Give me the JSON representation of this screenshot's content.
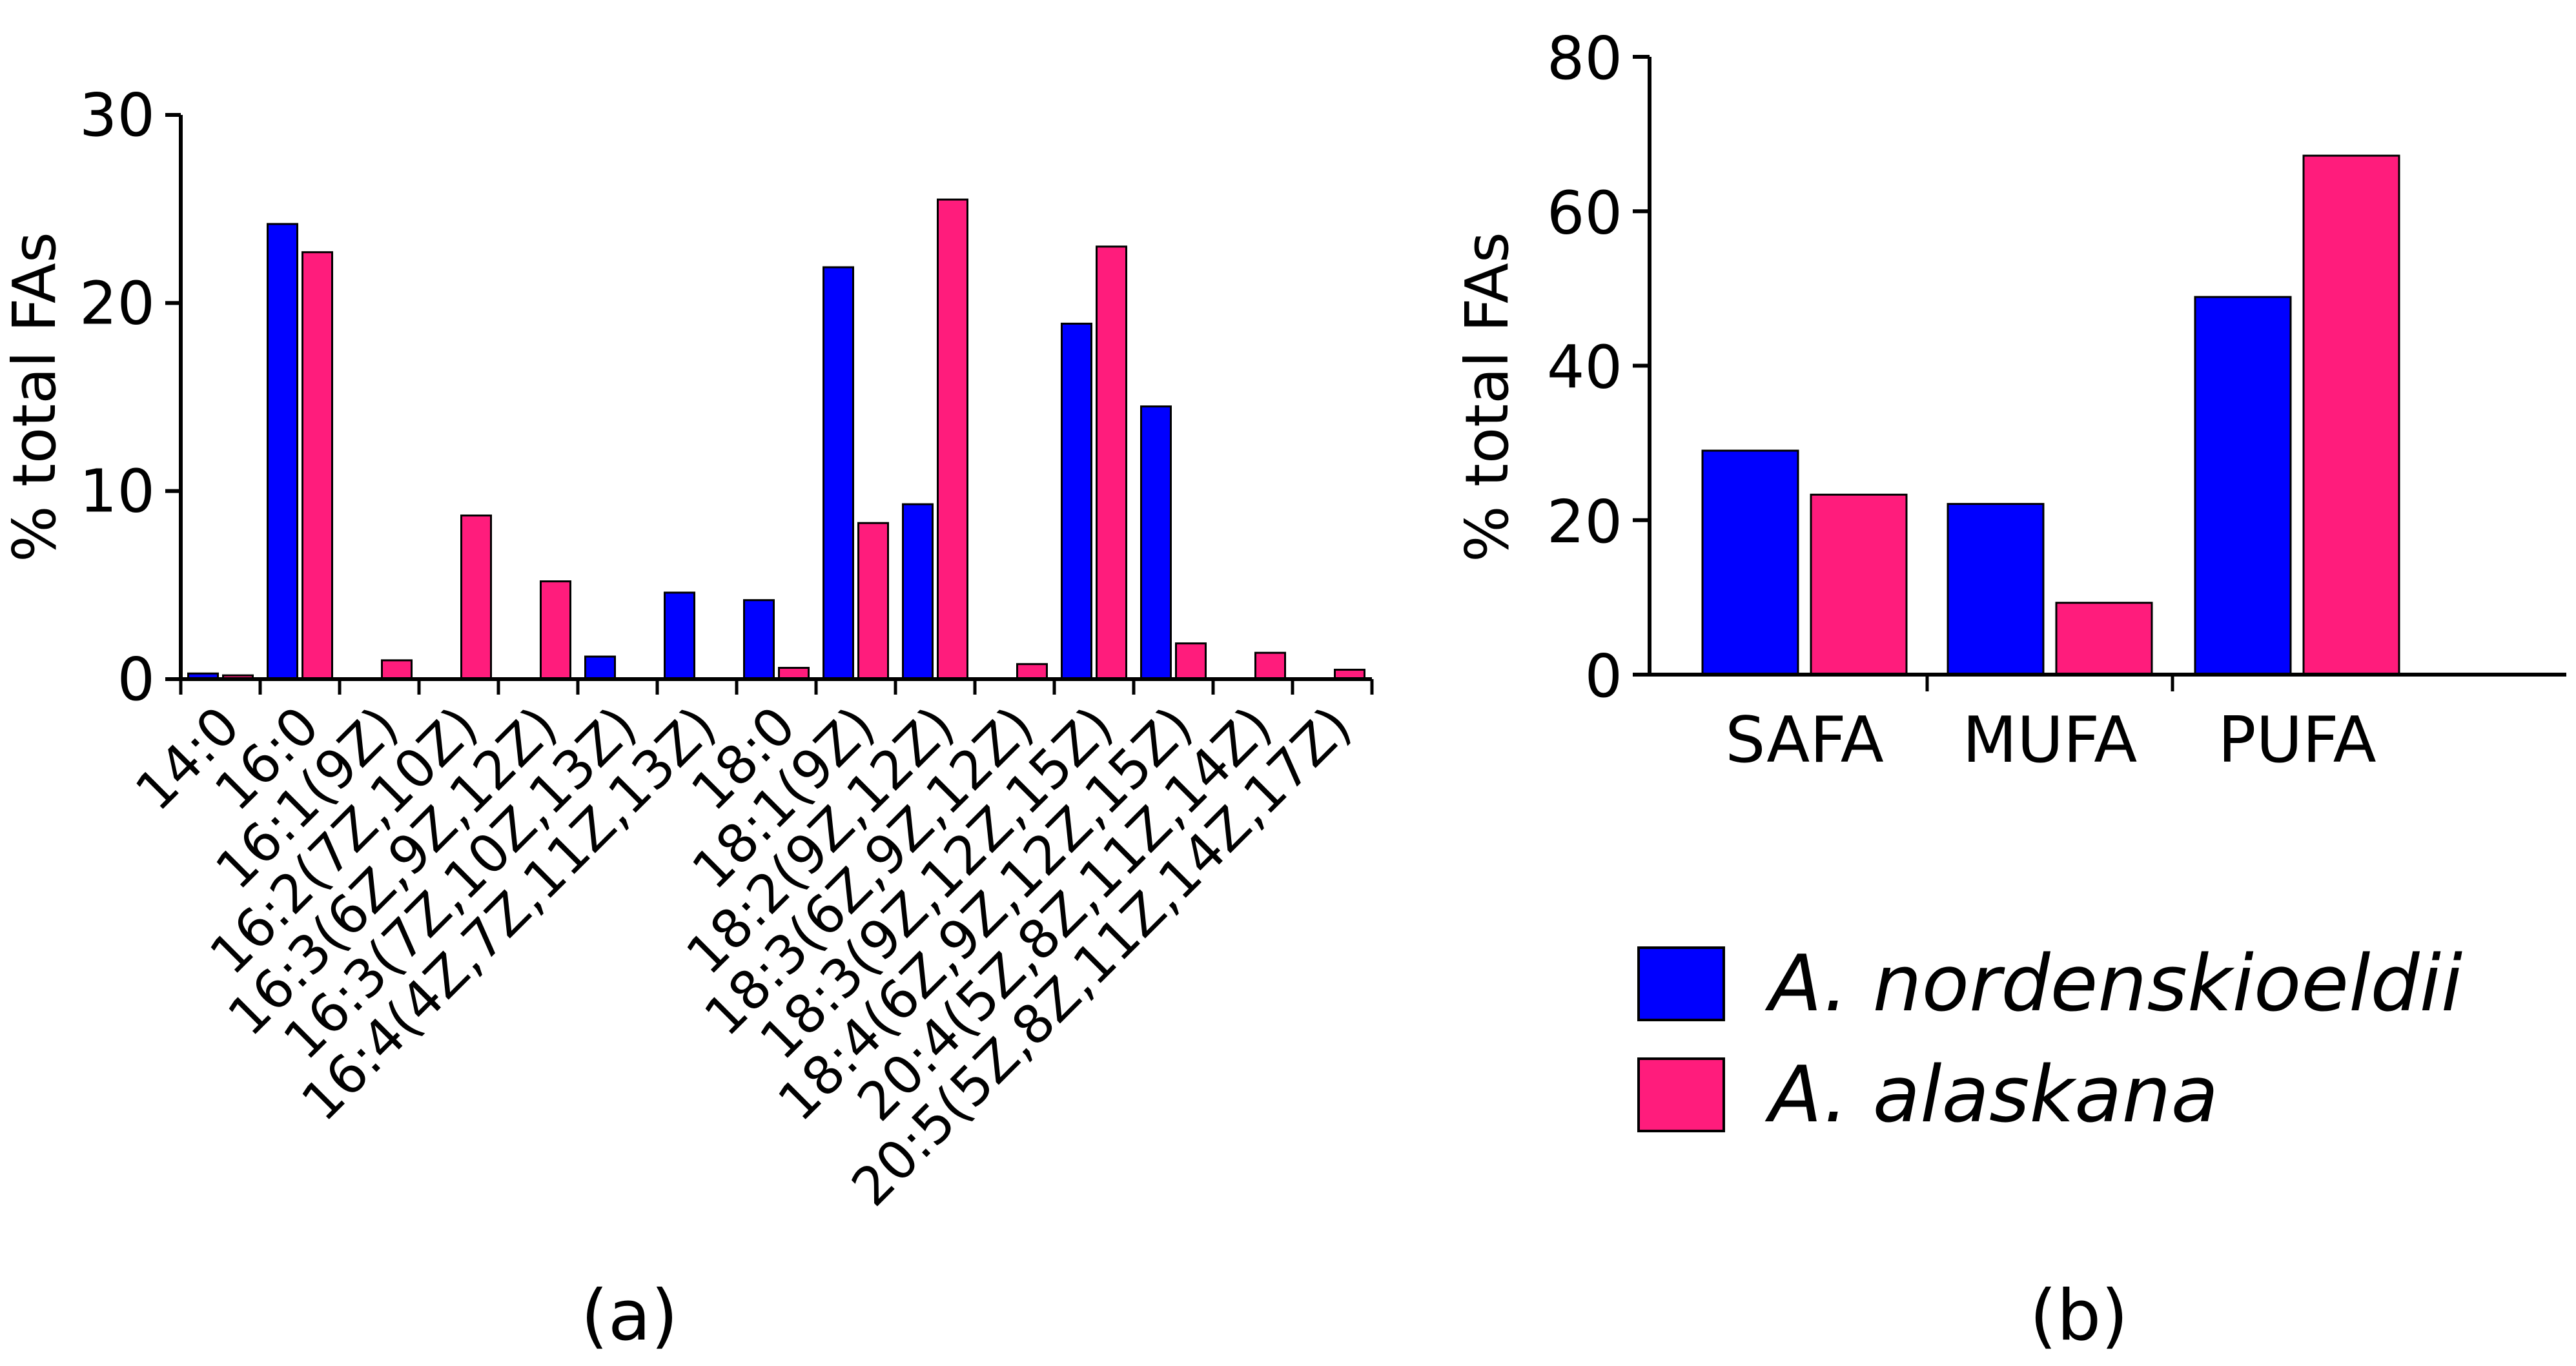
{
  "chart_data": [
    {
      "type": "bar",
      "panel_label": "(a)",
      "ylabel": "% total FAs",
      "ylim": [
        0,
        30
      ],
      "yticks": [
        "0",
        "10",
        "20",
        "30"
      ],
      "categories": [
        "14:0",
        "16:0",
        "16:1(9Z)",
        "16:2(7Z,10Z)",
        "16:3(6Z,9Z,12Z)",
        "16:3(7Z,10Z,13Z)",
        "16:4(4Z,7Z,11Z,13Z)",
        "18:0",
        "18:1(9Z)",
        "18:2(9Z,12Z)",
        "18:3(6Z,9Z,12Z)",
        "18:3(9Z,12Z,15Z)",
        "18:4(6Z,9Z,12Z,15Z)",
        "20:4(5Z,8Z,11Z,14Z)",
        "20:5(5Z,8Z,11Z,14Z,17Z)"
      ],
      "series": [
        {
          "name": "A. nordenskioeldii",
          "color": "#0000FF",
          "values": [
            0.3,
            24.2,
            0,
            0,
            0,
            1.2,
            4.6,
            4.2,
            21.9,
            9.3,
            0,
            18.9,
            14.5,
            0,
            0
          ]
        },
        {
          "name": "A. alaskana",
          "color": "#FF1C7C",
          "values": [
            0.2,
            22.7,
            1.0,
            8.7,
            5.2,
            0,
            0,
            0.6,
            8.3,
            25.5,
            0.8,
            23.0,
            1.9,
            1.4,
            0.5
          ]
        }
      ],
      "grid": false
    },
    {
      "type": "bar",
      "panel_label": "(b)",
      "ylabel": "% total FAs",
      "ylim": [
        0,
        80
      ],
      "yticks": [
        "0",
        "20",
        "40",
        "60",
        "80"
      ],
      "categories": [
        "SAFA",
        "MUFA",
        "PUFA"
      ],
      "series": [
        {
          "name": "A. nordenskioeldii",
          "color": "#0000FF",
          "values": [
            29.0,
            22.1,
            48.9
          ]
        },
        {
          "name": "A. alaskana",
          "color": "#FF1C7C",
          "values": [
            23.3,
            9.3,
            67.2
          ]
        }
      ],
      "grid": false
    }
  ],
  "legend": {
    "placement": "bottom-right",
    "items": [
      {
        "label": "A. nordenskioeldii",
        "color": "#0000FF"
      },
      {
        "label": "A. alaskana",
        "color": "#FF1C7C"
      }
    ]
  }
}
